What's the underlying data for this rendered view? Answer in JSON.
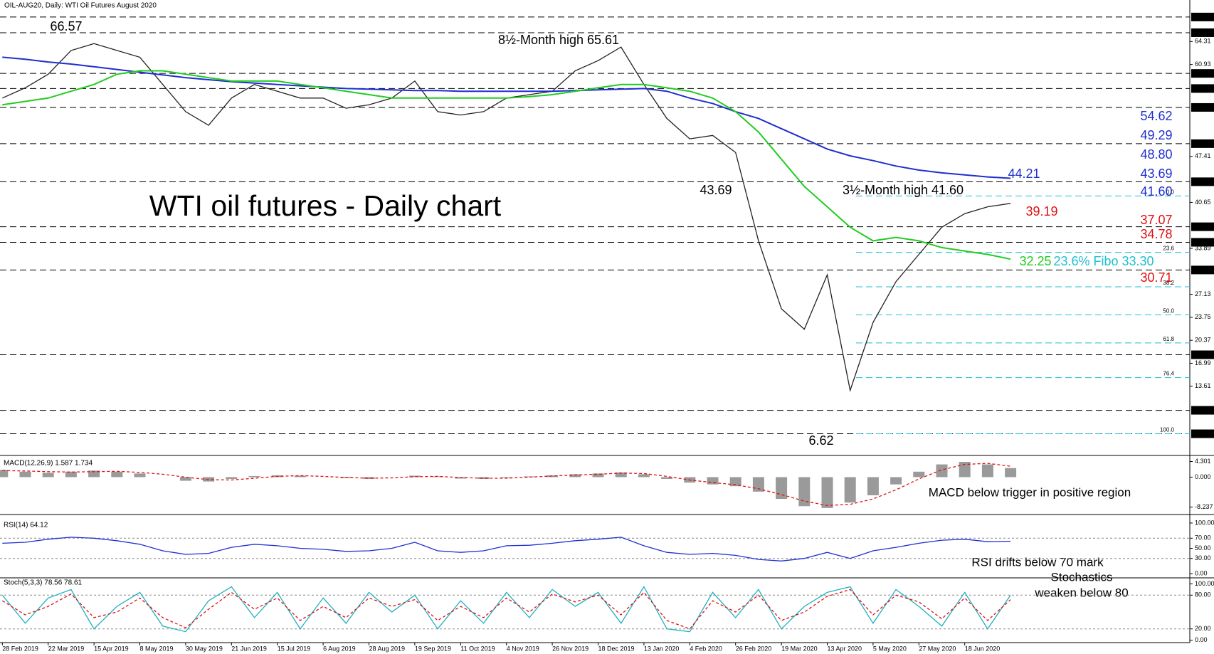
{
  "chart_data": [
    {
      "type": "line",
      "header": "OIL-AUG20, Daily:  WTI Oil Futures August 2020",
      "title": "WTI oil futures - Daily chart",
      "categories": [
        "28 Feb 2019",
        null,
        "22 Mar 2019",
        null,
        "15 Apr 2019",
        null,
        "8 May 2019",
        null,
        "30 May 2019",
        null,
        "21 Jun 2019",
        null,
        "15 Jul 2019",
        null,
        "6 Aug 2019",
        null,
        "28 Aug 2019",
        null,
        "19 Sep 2019",
        null,
        "11 Oct 2019",
        null,
        "4 Nov 2019",
        null,
        "26 Nov 2019",
        null,
        "18 Dec 2019",
        null,
        "13 Jan 2020",
        null,
        "4 Feb 2020",
        null,
        "26 Feb 2020",
        null,
        "19 Mar 2020",
        null,
        "13 Apr 2020",
        null,
        "5 May 2020",
        null,
        "27 May 2020",
        null,
        "18 Jun 2020",
        null,
        null
      ],
      "series": [
        {
          "color": "#222222",
          "values": [
            56,
            57.5,
            59.5,
            63,
            64,
            63,
            62,
            58,
            54,
            52,
            56,
            58,
            57,
            56,
            56,
            54.5,
            55,
            56,
            58.5,
            54,
            53.5,
            54,
            56,
            56.5,
            57,
            60,
            61.5,
            63.5,
            58,
            53,
            50,
            50.5,
            48,
            35,
            25,
            22,
            30,
            13,
            23,
            29,
            33,
            37,
            39,
            40,
            40.5
          ]
        },
        {
          "color": "#1f2fd0",
          "values": [
            62,
            61.7,
            61.3,
            61,
            60.6,
            60.2,
            59.8,
            59.4,
            59,
            58.7,
            58.4,
            58.2,
            58,
            57.8,
            57.6,
            57.4,
            57.3,
            57.2,
            57.1,
            57.1,
            57,
            57,
            57,
            57,
            57,
            57.1,
            57.2,
            57.3,
            57.4,
            57,
            56,
            55.2,
            54,
            53,
            51.5,
            50,
            48.5,
            47.5,
            46.8,
            46,
            45.4,
            45,
            44.7,
            44.4,
            44.2
          ]
        },
        {
          "color": "#22cc22",
          "values": [
            55,
            55.5,
            56,
            57,
            58,
            59.5,
            60,
            60,
            59.5,
            59,
            58.5,
            58.5,
            58.5,
            58,
            57.5,
            57,
            56.5,
            56,
            56,
            56,
            56,
            56,
            56,
            56.2,
            56.5,
            57,
            57.5,
            58,
            58,
            57.5,
            57,
            56,
            54,
            51,
            47,
            43,
            40,
            37,
            35,
            35.5,
            35,
            34,
            33.5,
            33,
            32.3
          ]
        }
      ],
      "ylim": [
        3.64,
        70.21
      ],
      "yticks": [
        64.31,
        60.93,
        47.41,
        40.65,
        33.89,
        27.13,
        23.75,
        20.37,
        16.99,
        13.61
      ],
      "levels": [
        67.92,
        65.61,
        59.62,
        57.4,
        54.62,
        49.29,
        43.69,
        37.07,
        34.78,
        30.71,
        18.24,
        10.07,
        6.62
      ],
      "level_labels": [
        "67.92",
        "65.61",
        "59.62",
        "57.40",
        "54.62",
        "49.29",
        "43.69",
        "37.07",
        "34.78",
        "30.71",
        "18.24",
        "10.07",
        "6.62"
      ],
      "fib": [
        {
          "value": 41.6,
          "label": "0.0"
        },
        {
          "value": 33.3,
          "label": "23.6"
        },
        {
          "value": 28.24,
          "label": "38.2"
        },
        {
          "value": 24.11,
          "label": "50.0"
        },
        {
          "value": 19.98,
          "label": "61.8"
        },
        {
          "value": 14.88,
          "label": "76.4"
        },
        {
          "value": 6.62,
          "label": "100.0"
        }
      ],
      "annotations": [
        {
          "text": "66.57",
          "color": "#000000"
        },
        {
          "text": "8½-Month high 65.61",
          "color": "#000000"
        },
        {
          "text": "43.69",
          "color": "#000000"
        },
        {
          "text": "3½-Month high 41.60",
          "color": "#000000"
        },
        {
          "text": "6.62",
          "color": "#000000"
        },
        {
          "text": "54.62",
          "color": "#1f2fd0"
        },
        {
          "text": "49.29",
          "color": "#1f2fd0"
        },
        {
          "text": "48.80",
          "color": "#1f2fd0"
        },
        {
          "text": "44.21",
          "color": "#1f2fd0"
        },
        {
          "text": "43.69",
          "color": "#1f2fd0"
        },
        {
          "text": "41.60",
          "color": "#1f2fd0"
        },
        {
          "text": "39.19",
          "color": "#e01010"
        },
        {
          "text": "37.07",
          "color": "#e01010"
        },
        {
          "text": "34.78",
          "color": "#e01010"
        },
        {
          "text": "32.25",
          "color": "#22cc22"
        },
        {
          "text": "23.6% Fibo 33.30",
          "color": "#20c0d0"
        },
        {
          "text": "30.71",
          "color": "#e01010"
        }
      ]
    },
    {
      "type": "bar",
      "header": "MACD(12,26,9) 1.587 1.734",
      "note": "MACD below trigger in positive region",
      "series": [
        {
          "type": "bar",
          "color": "#9a9a9a",
          "values": [
            2,
            1.5,
            1.2,
            1.5,
            1.8,
            1.5,
            1,
            0,
            -1,
            -1.2,
            -0.5,
            0.3,
            0.5,
            0.4,
            0,
            -0.3,
            -0.5,
            0,
            0.4,
            0.2,
            -0.4,
            -0.5,
            -0.2,
            0.2,
            0.5,
            0.8,
            1,
            1.3,
            0.8,
            -0.5,
            -1.5,
            -2,
            -2.5,
            -4,
            -6,
            -8,
            -8.5,
            -7,
            -5,
            -2,
            1.5,
            3.5,
            4.2,
            3.5,
            2.5
          ]
        },
        {
          "type": "line",
          "color": "#e01010",
          "values": [
            1.8,
            1.7,
            1.5,
            1.4,
            1.5,
            1.6,
            1.3,
            0.8,
            0,
            -0.7,
            -0.8,
            -0.3,
            0.2,
            0.4,
            0.2,
            -0.1,
            -0.3,
            -0.2,
            0.1,
            0.2,
            -0.1,
            -0.3,
            -0.3,
            0,
            0.3,
            0.6,
            0.8,
            1.1,
            1,
            0.2,
            -0.8,
            -1.5,
            -2.1,
            -3.2,
            -4.8,
            -6.6,
            -7.8,
            -7.5,
            -6,
            -3.5,
            -0.5,
            2,
            3.5,
            3.8,
            3
          ]
        }
      ],
      "ylim": [
        -10.1,
        5.38
      ],
      "yticks": [
        4.301,
        {
          "value": 0,
          "label": "0.000"
        },
        -8.237
      ]
    },
    {
      "type": "line",
      "header": "RSI(14) 64.12",
      "note": "RSI drifts below 70 mark",
      "series": [
        {
          "color": "#1f2fd0",
          "values": [
            60,
            62,
            68,
            72,
            70,
            65,
            58,
            45,
            38,
            40,
            52,
            58,
            55,
            50,
            48,
            44,
            45,
            50,
            62,
            45,
            42,
            45,
            55,
            56,
            60,
            65,
            68,
            72,
            55,
            42,
            38,
            40,
            36,
            28,
            25,
            30,
            42,
            30,
            45,
            52,
            60,
            66,
            68,
            63,
            64
          ]
        }
      ],
      "ylim": [
        -7,
        114
      ],
      "yticks": [
        {
          "value": 100,
          "label": "100.00"
        },
        {
          "value": 70,
          "label": "70.00"
        },
        {
          "value": 50,
          "label": "50.00"
        },
        {
          "value": 30,
          "label": "30.00"
        },
        {
          "value": 0,
          "label": "0.00"
        }
      ],
      "dashed": [
        70,
        30
      ]
    },
    {
      "type": "line",
      "header": "Stoch(5,3,3) 78.56 78.61",
      "note": [
        "Stochastics",
        "weaken below 80"
      ],
      "series": [
        {
          "color": "#20b0c0",
          "values": [
            80,
            30,
            75,
            90,
            20,
            60,
            85,
            25,
            15,
            70,
            95,
            40,
            85,
            20,
            75,
            30,
            85,
            50,
            80,
            20,
            70,
            30,
            85,
            40,
            90,
            60,
            85,
            30,
            95,
            20,
            15,
            85,
            40,
            90,
            20,
            60,
            85,
            95,
            30,
            90,
            60,
            25,
            85,
            20,
            80
          ]
        },
        {
          "color": "#e01010",
          "values": [
            70,
            45,
            60,
            82,
            40,
            50,
            75,
            40,
            22,
            55,
            85,
            55,
            75,
            35,
            60,
            40,
            75,
            60,
            72,
            35,
            60,
            40,
            75,
            50,
            82,
            68,
            80,
            45,
            85,
            35,
            20,
            70,
            50,
            80,
            35,
            50,
            78,
            90,
            45,
            80,
            68,
            38,
            75,
            35,
            72
          ]
        }
      ],
      "ylim": [
        -4.4,
        109.5
      ],
      "yticks": [
        {
          "value": 100,
          "label": "100.00"
        },
        {
          "value": 80,
          "label": "80.00"
        },
        {
          "value": 20,
          "label": "20.00"
        },
        {
          "value": 0,
          "label": "0.00"
        }
      ],
      "dashed": [
        80,
        20
      ]
    }
  ]
}
